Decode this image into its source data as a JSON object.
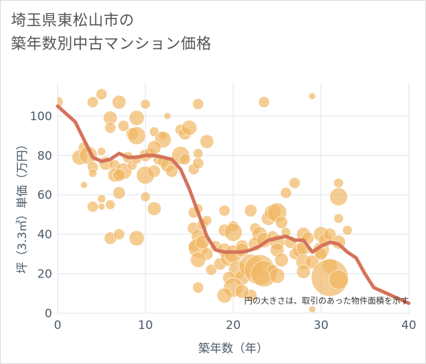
{
  "title_lines": [
    "埼玉県東松山市の",
    "築年数別中古マンション価格"
  ],
  "chart_data": {
    "type": "scatter",
    "xlabel": "築年数（年）",
    "ylabel": "坪（3.3㎡）単価（万円）",
    "xlim": [
      0,
      40
    ],
    "ylim": [
      0,
      117
    ],
    "x_ticks": [
      0,
      10,
      20,
      30,
      40
    ],
    "y_ticks": [
      0,
      20,
      40,
      60,
      80,
      100
    ],
    "grid": true,
    "annotation": "円の大きさは、取引のあった物件面積を示す",
    "colors": {
      "bubble": "#f0b660",
      "trend": "#d4735a",
      "grid": "#dde3ea"
    },
    "points": [
      {
        "x": 0,
        "y": 107,
        "s": 8
      },
      {
        "x": 4,
        "y": 107,
        "s": 8
      },
      {
        "x": 5,
        "y": 111,
        "s": 8
      },
      {
        "x": 7,
        "y": 107,
        "s": 10
      },
      {
        "x": 10,
        "y": 106,
        "s": 7
      },
      {
        "x": 12.5,
        "y": 100,
        "s": 5
      },
      {
        "x": 16,
        "y": 106,
        "s": 8
      },
      {
        "x": 23.5,
        "y": 107,
        "s": 8
      },
      {
        "x": 29,
        "y": 110,
        "s": 5
      },
      {
        "x": 6,
        "y": 99,
        "s": 10
      },
      {
        "x": 9,
        "y": 99,
        "s": 11
      },
      {
        "x": 7.5,
        "y": 95,
        "s": 8
      },
      {
        "x": 8.5,
        "y": 91,
        "s": 9
      },
      {
        "x": 9,
        "y": 90,
        "s": 13
      },
      {
        "x": 6,
        "y": 94,
        "s": 8
      },
      {
        "x": 11,
        "y": 92,
        "s": 7
      },
      {
        "x": 12,
        "y": 90,
        "s": 6
      },
      {
        "x": 14,
        "y": 93,
        "s": 8
      },
      {
        "x": 14.5,
        "y": 91,
        "s": 9
      },
      {
        "x": 15,
        "y": 94,
        "s": 11
      },
      {
        "x": 17,
        "y": 87,
        "s": 10
      },
      {
        "x": 12,
        "y": 88,
        "s": 12
      },
      {
        "x": 3,
        "y": 84,
        "s": 8
      },
      {
        "x": 5,
        "y": 82,
        "s": 6
      },
      {
        "x": 2.5,
        "y": 79,
        "s": 11
      },
      {
        "x": 3.5,
        "y": 80,
        "s": 13
      },
      {
        "x": 4,
        "y": 74,
        "s": 8
      },
      {
        "x": 4,
        "y": 71,
        "s": 6
      },
      {
        "x": 5.5,
        "y": 76,
        "s": 10
      },
      {
        "x": 6.5,
        "y": 75,
        "s": 8
      },
      {
        "x": 6.5,
        "y": 70,
        "s": 10
      },
      {
        "x": 7.5,
        "y": 72,
        "s": 12
      },
      {
        "x": 7,
        "y": 70,
        "s": 9
      },
      {
        "x": 8,
        "y": 79,
        "s": 8
      },
      {
        "x": 8.5,
        "y": 75,
        "s": 7
      },
      {
        "x": 9,
        "y": 78,
        "s": 7
      },
      {
        "x": 10,
        "y": 80,
        "s": 9
      },
      {
        "x": 10.5,
        "y": 81,
        "s": 8
      },
      {
        "x": 11,
        "y": 84,
        "s": 10
      },
      {
        "x": 11.5,
        "y": 78,
        "s": 8
      },
      {
        "x": 11,
        "y": 72,
        "s": 9
      },
      {
        "x": 10,
        "y": 70,
        "s": 13
      },
      {
        "x": 12,
        "y": 77,
        "s": 8
      },
      {
        "x": 12.5,
        "y": 75,
        "s": 10
      },
      {
        "x": 13,
        "y": 72,
        "s": 9
      },
      {
        "x": 14,
        "y": 80,
        "s": 13
      },
      {
        "x": 14.5,
        "y": 78,
        "s": 8
      },
      {
        "x": 15.5,
        "y": 73,
        "s": 8
      },
      {
        "x": 16,
        "y": 76,
        "s": 8
      },
      {
        "x": 16,
        "y": 81,
        "s": 7
      },
      {
        "x": 3,
        "y": 65,
        "s": 5
      },
      {
        "x": 5,
        "y": 58,
        "s": 6
      },
      {
        "x": 4,
        "y": 54,
        "s": 8
      },
      {
        "x": 5,
        "y": 54,
        "s": 5
      },
      {
        "x": 6,
        "y": 55,
        "s": 7
      },
      {
        "x": 7,
        "y": 61,
        "s": 9
      },
      {
        "x": 10,
        "y": 59,
        "s": 7
      },
      {
        "x": 11,
        "y": 53,
        "s": 10
      },
      {
        "x": 6,
        "y": 38,
        "s": 9
      },
      {
        "x": 7,
        "y": 40,
        "s": 8
      },
      {
        "x": 9,
        "y": 38,
        "s": 11
      },
      {
        "x": 15.5,
        "y": 51,
        "s": 8
      },
      {
        "x": 16,
        "y": 53,
        "s": 7
      },
      {
        "x": 15.5,
        "y": 43,
        "s": 9
      },
      {
        "x": 16,
        "y": 39,
        "s": 10
      },
      {
        "x": 16.5,
        "y": 45,
        "s": 8
      },
      {
        "x": 17,
        "y": 47,
        "s": 7
      },
      {
        "x": 15.5,
        "y": 34,
        "s": 8
      },
      {
        "x": 16,
        "y": 33,
        "s": 14
      },
      {
        "x": 16.5,
        "y": 36,
        "s": 10
      },
      {
        "x": 17,
        "y": 30,
        "s": 9
      },
      {
        "x": 16,
        "y": 27,
        "s": 11
      },
      {
        "x": 18,
        "y": 34,
        "s": 8
      },
      {
        "x": 17.5,
        "y": 22,
        "s": 8
      },
      {
        "x": 18.5,
        "y": 25,
        "s": 9
      },
      {
        "x": 16,
        "y": 13,
        "s": 8
      },
      {
        "x": 19,
        "y": 52,
        "s": 8
      },
      {
        "x": 19,
        "y": 42,
        "s": 9
      },
      {
        "x": 20,
        "y": 44,
        "s": 8
      },
      {
        "x": 20,
        "y": 41,
        "s": 13
      },
      {
        "x": 19,
        "y": 32,
        "s": 10
      },
      {
        "x": 19.5,
        "y": 28,
        "s": 12
      },
      {
        "x": 20,
        "y": 30,
        "s": 13
      },
      {
        "x": 21,
        "y": 34,
        "s": 9
      },
      {
        "x": 21,
        "y": 32,
        "s": 10
      },
      {
        "x": 20.5,
        "y": 22,
        "s": 13
      },
      {
        "x": 19.5,
        "y": 18,
        "s": 9
      },
      {
        "x": 21,
        "y": 18,
        "s": 11
      },
      {
        "x": 20,
        "y": 13,
        "s": 14
      },
      {
        "x": 19,
        "y": 9,
        "s": 11
      },
      {
        "x": 22,
        "y": 9,
        "s": 9
      },
      {
        "x": 21,
        "y": 11,
        "s": 10
      },
      {
        "x": 22,
        "y": 52,
        "s": 9
      },
      {
        "x": 22.5,
        "y": 43,
        "s": 8
      },
      {
        "x": 23,
        "y": 40,
        "s": 11
      },
      {
        "x": 22.5,
        "y": 35,
        "s": 10
      },
      {
        "x": 23.5,
        "y": 37,
        "s": 11
      },
      {
        "x": 22,
        "y": 24,
        "s": 17
      },
      {
        "x": 23,
        "y": 22,
        "s": 22
      },
      {
        "x": 23.5,
        "y": 20,
        "s": 19
      },
      {
        "x": 24,
        "y": 48,
        "s": 10
      },
      {
        "x": 24.5,
        "y": 51,
        "s": 12
      },
      {
        "x": 25,
        "y": 51,
        "s": 14
      },
      {
        "x": 25.5,
        "y": 46,
        "s": 9
      },
      {
        "x": 24.5,
        "y": 39,
        "s": 8
      },
      {
        "x": 25,
        "y": 36,
        "s": 11
      },
      {
        "x": 25,
        "y": 32,
        "s": 10
      },
      {
        "x": 24.5,
        "y": 22,
        "s": 8
      },
      {
        "x": 25.5,
        "y": 27,
        "s": 10
      },
      {
        "x": 25,
        "y": 19,
        "s": 11
      },
      {
        "x": 26,
        "y": 61,
        "s": 8
      },
      {
        "x": 27,
        "y": 66,
        "s": 8
      },
      {
        "x": 26,
        "y": 41,
        "s": 7
      },
      {
        "x": 26.5,
        "y": 36,
        "s": 9
      },
      {
        "x": 27,
        "y": 30,
        "s": 8
      },
      {
        "x": 27.5,
        "y": 32,
        "s": 10
      },
      {
        "x": 28,
        "y": 40,
        "s": 10
      },
      {
        "x": 28.5,
        "y": 38,
        "s": 9
      },
      {
        "x": 28,
        "y": 33,
        "s": 10
      },
      {
        "x": 28,
        "y": 26,
        "s": 11
      },
      {
        "x": 29,
        "y": 26,
        "s": 10
      },
      {
        "x": 28,
        "y": 21,
        "s": 10
      },
      {
        "x": 29,
        "y": 2,
        "s": 5
      },
      {
        "x": 30,
        "y": 32,
        "s": 12
      },
      {
        "x": 30,
        "y": 30,
        "s": 9
      },
      {
        "x": 30,
        "y": 40,
        "s": 11
      },
      {
        "x": 30.5,
        "y": 37,
        "s": 10
      },
      {
        "x": 31,
        "y": 40,
        "s": 9
      },
      {
        "x": 31,
        "y": 24,
        "s": 11
      },
      {
        "x": 31,
        "y": 18,
        "s": 27
      },
      {
        "x": 32,
        "y": 17,
        "s": 14
      },
      {
        "x": 32,
        "y": 36,
        "s": 10
      },
      {
        "x": 32,
        "y": 59,
        "s": 13
      },
      {
        "x": 32,
        "y": 66,
        "s": 7
      },
      {
        "x": 32,
        "y": 48,
        "s": 7
      },
      {
        "x": 33,
        "y": 42,
        "s": 7
      }
    ],
    "trend": [
      {
        "x": 0,
        "y": 105
      },
      {
        "x": 2,
        "y": 97
      },
      {
        "x": 3,
        "y": 88
      },
      {
        "x": 4,
        "y": 79
      },
      {
        "x": 5,
        "y": 77
      },
      {
        "x": 6,
        "y": 78
      },
      {
        "x": 7,
        "y": 81
      },
      {
        "x": 8,
        "y": 79
      },
      {
        "x": 9,
        "y": 79
      },
      {
        "x": 10,
        "y": 80
      },
      {
        "x": 11,
        "y": 80
      },
      {
        "x": 12,
        "y": 79
      },
      {
        "x": 13,
        "y": 78
      },
      {
        "x": 14,
        "y": 73
      },
      {
        "x": 15,
        "y": 63
      },
      {
        "x": 16,
        "y": 51
      },
      {
        "x": 17,
        "y": 39
      },
      {
        "x": 18,
        "y": 32
      },
      {
        "x": 19,
        "y": 31
      },
      {
        "x": 20,
        "y": 31
      },
      {
        "x": 21,
        "y": 31
      },
      {
        "x": 22,
        "y": 32
      },
      {
        "x": 23,
        "y": 34
      },
      {
        "x": 24,
        "y": 37
      },
      {
        "x": 25,
        "y": 38
      },
      {
        "x": 26,
        "y": 39
      },
      {
        "x": 27,
        "y": 37
      },
      {
        "x": 28,
        "y": 37
      },
      {
        "x": 29,
        "y": 31
      },
      {
        "x": 30,
        "y": 34
      },
      {
        "x": 31,
        "y": 36
      },
      {
        "x": 32,
        "y": 35
      },
      {
        "x": 33,
        "y": 31
      },
      {
        "x": 34,
        "y": 28
      },
      {
        "x": 35,
        "y": 20
      },
      {
        "x": 36,
        "y": 13
      },
      {
        "x": 38,
        "y": 9
      },
      {
        "x": 40,
        "y": 5
      }
    ]
  }
}
